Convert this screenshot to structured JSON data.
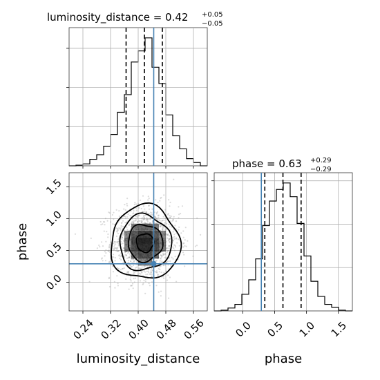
{
  "chart_data": {
    "type": "corner",
    "parameters": [
      "luminosity_distance",
      "phase"
    ],
    "truth": {
      "luminosity_distance": 0.445,
      "phase": 0.29
    },
    "colors": {
      "truth": "#4682b4",
      "hist": "#000000",
      "density": "#000000",
      "scatter": "#999999"
    },
    "diag_dist": {
      "title": {
        "prefix": "luminosity_distance = 0.42",
        "sup": "+0.05",
        "sub": "−0.05"
      },
      "xlim": [
        0.2,
        0.6
      ],
      "quantiles": [
        0.365,
        0.418,
        0.47
      ],
      "bins": [
        0.2,
        0.22,
        0.24,
        0.26,
        0.28,
        0.3,
        0.32,
        0.34,
        0.36,
        0.38,
        0.4,
        0.42,
        0.44,
        0.46,
        0.48,
        0.5,
        0.52,
        0.54,
        0.56,
        0.58,
        0.6
      ],
      "counts": [
        0,
        1,
        3,
        10,
        17,
        30,
        48,
        82,
        109,
        159,
        176,
        196,
        151,
        126,
        78,
        46,
        26,
        11,
        5,
        0
      ],
      "yticks": [
        60,
        120,
        180,
        240
      ],
      "grid": true
    },
    "diag_phase": {
      "title": {
        "prefix": "phase = 0.63",
        "sup": "+0.29",
        "sub": "−0.29"
      },
      "xlim": [
        -0.45,
        1.72
      ],
      "quantiles": [
        0.345,
        0.63,
        0.915
      ],
      "bins": [
        -0.45,
        -0.3415,
        -0.233,
        -0.1245,
        -0.016,
        0.0925,
        0.201,
        0.3095,
        0.418,
        0.5265,
        0.635,
        0.7435,
        0.852,
        0.9605,
        1.069,
        1.1775,
        1.286,
        1.3945,
        1.503,
        1.6115,
        1.72
      ],
      "counts": [
        0,
        1,
        4,
        9,
        23,
        43,
        72,
        118,
        152,
        168,
        177,
        158,
        121,
        76,
        41,
        20,
        9,
        5,
        1,
        0
      ],
      "xticks": [
        0.0,
        0.5,
        1.0,
        1.5
      ],
      "xtick_labels": [
        "0.0",
        "0.5",
        "1.0",
        "1.5"
      ],
      "yticks": [
        60,
        120,
        180
      ],
      "xlabel": "phase",
      "grid": true
    },
    "joint": {
      "xlim": [
        0.2,
        0.6
      ],
      "ylim": [
        -0.45,
        1.72
      ],
      "xticks": [
        0.24,
        0.32,
        0.4,
        0.48,
        0.56
      ],
      "xtick_labels": [
        "0.24",
        "0.32",
        "0.40",
        "0.48",
        "0.56"
      ],
      "yticks": [
        0.0,
        0.5,
        1.0,
        1.5
      ],
      "ytick_labels": [
        "0.0",
        "0.5",
        "1.0",
        "1.5"
      ],
      "xlabel": "luminosity_distance",
      "ylabel": "phase",
      "center": [
        0.42,
        0.62
      ],
      "sigma": [
        0.05,
        0.29
      ],
      "contour_levels_sigma": [
        0.5,
        1.0,
        1.5,
        2.0
      ],
      "density_cell": [
        0.02,
        0.11
      ],
      "grid": true
    }
  }
}
